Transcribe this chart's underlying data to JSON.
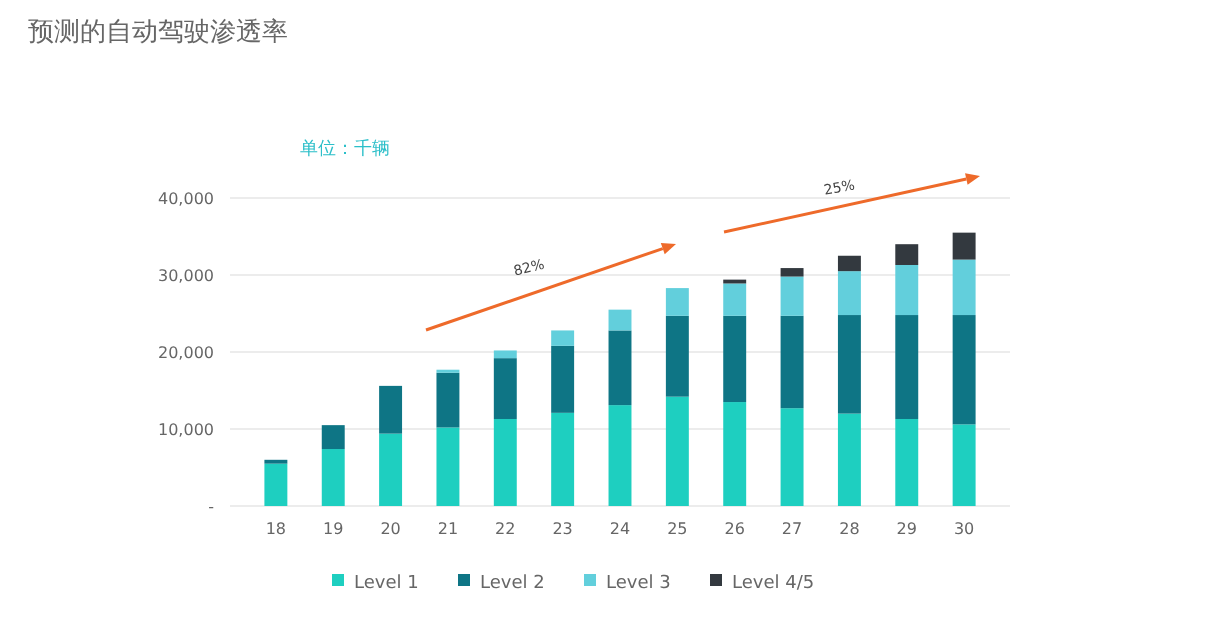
{
  "chart_data": {
    "type": "bar",
    "title": "预测的自动驾驶渗透率",
    "subtitle": "单位：千辆",
    "stacked": true,
    "categories": [
      "18",
      "19",
      "20",
      "21",
      "22",
      "23",
      "24",
      "25",
      "26",
      "27",
      "28",
      "29",
      "30"
    ],
    "series": [
      {
        "name": "Level 1",
        "color": "#1ecfc0",
        "values": [
          5500,
          7400,
          9400,
          10200,
          11300,
          12100,
          13100,
          14200,
          13500,
          12700,
          12000,
          11300,
          10600
        ]
      },
      {
        "name": "Level 2",
        "color": "#0e7585",
        "values": [
          500,
          3100,
          6200,
          7100,
          7900,
          8700,
          9700,
          10500,
          11200,
          12000,
          12800,
          13500,
          14200
        ]
      },
      {
        "name": "Level 3",
        "color": "#62cfdc",
        "values": [
          null,
          null,
          null,
          400,
          1000,
          2000,
          2700,
          3600,
          4200,
          5100,
          5700,
          6500,
          7200
        ]
      },
      {
        "name": "Level 4/5",
        "color": "#33393f",
        "values": [
          null,
          null,
          null,
          null,
          null,
          null,
          null,
          null,
          500,
          1100,
          2000,
          2700,
          3500
        ]
      }
    ],
    "ylim": [
      0,
      40000
    ],
    "yticks": [
      {
        "value": 0,
        "label": "-"
      },
      {
        "value": 10000,
        "label": "10,000"
      },
      {
        "value": 20000,
        "label": "20,000"
      },
      {
        "value": 30000,
        "label": "30,000"
      },
      {
        "value": 40000,
        "label": "40,000"
      }
    ],
    "grid": "y",
    "legend": "bottom",
    "annotations": [
      "82%",
      "25%"
    ]
  }
}
